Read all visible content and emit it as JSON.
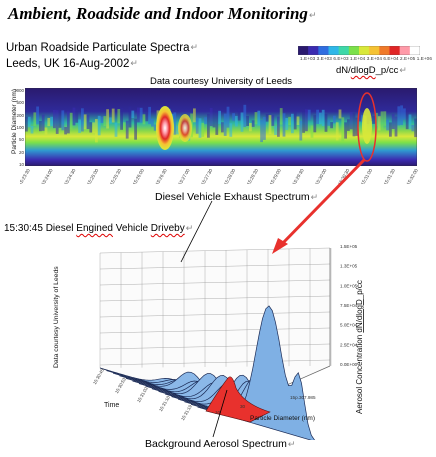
{
  "document": {
    "title": "Ambient, Roadside and Indoor Monitoring",
    "paragraph_mark": "↵",
    "subtitle_line1": "Urban Roadside Particulate Spectra",
    "subtitle_line2": "Leeds, UK 16-Aug-2002",
    "diesel_label": "Diesel Vehicle Exhaust Spectrum",
    "background_label": "Background Aerosol Spectrum",
    "accent_color": "#e8312d"
  },
  "chart_data": [
    {
      "type": "heatmap",
      "title": "Data courtesy University of Leeds",
      "ylabel": "Particle Diameter (nm)",
      "yticks": [
        "1000",
        "500",
        "200",
        "100",
        "50",
        "20",
        "10"
      ],
      "xticks": [
        "15:23:30",
        "15:24:00",
        "15:24:30",
        "15:25:00",
        "15:25:30",
        "15:26:00",
        "15:26:30",
        "15:27:00",
        "15:27:30",
        "15:28:00",
        "15:28:30",
        "15:29:00",
        "15:29:30",
        "15:30:00",
        "15:30:30",
        "15:31:00",
        "15:31:30",
        "15:32:00"
      ],
      "colorbar_label": "dN/dlogD_p/cc",
      "colorbar_label_parts": {
        "prefix": "dN/",
        "wavy": "dlogD",
        "suffix": "_p/cc"
      },
      "colorbar_ticks": [
        "1.E+03",
        "3.E+03",
        "6.E+03",
        "1.E+04",
        "3.E+04",
        "6.E+04",
        "2.E+05",
        "1.E+06"
      ],
      "colorbar_colors": [
        "#2a1a6e",
        "#3b2bb0",
        "#2f6de0",
        "#2fb7e8",
        "#3ed8a8",
        "#7be04a",
        "#d9e83a",
        "#f5c233",
        "#f07a2a",
        "#e02626",
        "#ff9aa8",
        "#ffffff"
      ],
      "events": [
        {
          "time": "15:26:45",
          "description": "high-concentration band"
        },
        {
          "time": "15:30:45",
          "description": "circled region"
        }
      ]
    },
    {
      "type": "area",
      "title": "15:30:45 Diesel Engined Vehicle Driveby",
      "title_parts": {
        "prefix": "15:30:45 Diesel ",
        "wavy1": "Engined",
        "middle": " Vehicle ",
        "wavy2": "Driveby"
      },
      "left_label": "Data courtesy University of Leeds",
      "zlabel": "Aerosol Concentration dN/dlogD_p/cc",
      "zlabel_parts": {
        "prefix": "Aerosol Concentration ",
        "wavy": "dN/dlogD",
        "suffix": "_p/cc"
      },
      "zticks": [
        "0.0E+00",
        "2.5E+04",
        "5.0E+04",
        "7.5E+04",
        "1.0E+05",
        "1.3E+05",
        "1.5E+05"
      ],
      "zlim": [
        0,
        150000
      ],
      "xlabel": "Particle Diameter (nm)",
      "xticks": [
        "10",
        "30",
        "15p.307.985"
      ],
      "ylabel": "Time",
      "yticks": [
        "15:30:45",
        "15:30:53",
        "15:31:02",
        "15:31:10",
        "15:31:19"
      ],
      "background_series_color": "#e8312d",
      "series_color": "#8bb8e8",
      "peaks": [
        150000,
        62000,
        56000,
        48000,
        52000,
        40000,
        36000,
        42000,
        30000,
        38000,
        26000,
        22000,
        30000,
        18000,
        14000,
        12000
      ]
    }
  ]
}
